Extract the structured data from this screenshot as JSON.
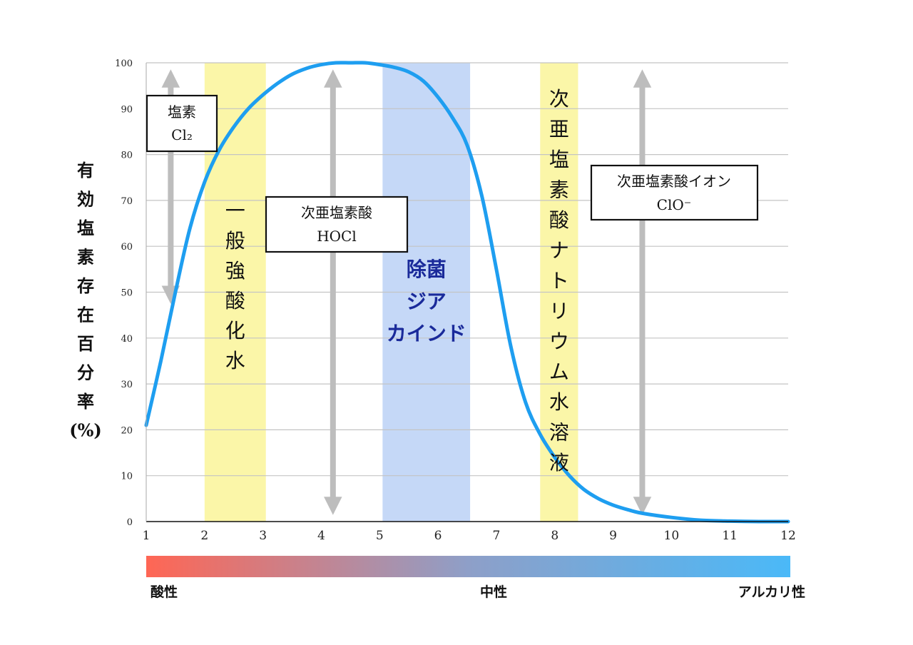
{
  "chart_data": {
    "type": "line",
    "ylabel_chars": [
      "有",
      "効",
      "塩",
      "素",
      "存",
      "在",
      "百",
      "分",
      "率",
      "(%)"
    ],
    "x_ticks": [
      "1",
      "2",
      "3",
      "4",
      "5",
      "6",
      "7",
      "8",
      "9",
      "10",
      "11",
      "12"
    ],
    "y_ticks": [
      "0",
      "10",
      "20",
      "30",
      "40",
      "50",
      "60",
      "70",
      "80",
      "90",
      "100"
    ],
    "xlim": [
      1,
      12
    ],
    "ylim": [
      0,
      100
    ],
    "grid": true,
    "series": [
      {
        "color": "#1e9ef0",
        "x": [
          1.0,
          1.25,
          1.5,
          1.75,
          2.0,
          2.25,
          2.5,
          2.75,
          3.0,
          3.25,
          3.5,
          3.75,
          4.0,
          4.25,
          4.5,
          4.75,
          5.0,
          5.25,
          5.5,
          5.75,
          6.0,
          6.25,
          6.5,
          6.75,
          7.0,
          7.25,
          7.5,
          7.75,
          8.0,
          8.25,
          8.5,
          8.75,
          9.0,
          9.25,
          9.5,
          10.0,
          10.5,
          11.0,
          11.5,
          12.0
        ],
        "y": [
          21,
          35,
          50,
          64,
          74,
          81,
          86,
          90,
          93,
          95.5,
          97.5,
          98.8,
          99.6,
          100,
          100,
          100,
          99.6,
          99,
          98,
          96,
          92.5,
          88,
          82,
          71,
          55,
          38,
          26,
          19,
          14,
          10,
          7,
          5,
          3.6,
          2.6,
          1.8,
          0.9,
          0.3,
          0.1,
          0,
          0
        ]
      }
    ],
    "bands": [
      {
        "x0": 2.0,
        "x1": 3.05,
        "color": "#fbf6a8",
        "label_vertical": [
          "一",
          "般",
          "強",
          "酸",
          "化",
          "水"
        ]
      },
      {
        "x0": 5.05,
        "x1": 6.55,
        "color": "#c5d8f7",
        "label_lines": [
          "除菌",
          "ジア",
          "カインド"
        ]
      },
      {
        "x0": 7.75,
        "x1": 8.4,
        "color": "#fbf6a8",
        "label_vertical": [
          "次",
          "亜",
          "塩",
          "素",
          "酸",
          "ナ",
          "ト",
          "リ",
          "ウ",
          "ム",
          "水",
          "溶",
          "液"
        ]
      }
    ],
    "arrows": [
      {
        "x": 1.42,
        "y_top": 100,
        "y_bottom": 46
      },
      {
        "x": 4.2,
        "y_top": 100,
        "y_bottom": 0
      },
      {
        "x": 9.5,
        "y_top": 100,
        "y_bottom": 0
      }
    ],
    "annotations": [
      {
        "lines": [
          "塩素",
          "Cl₂"
        ]
      },
      {
        "lines": [
          "次亜塩素酸",
          "HOCl"
        ]
      },
      {
        "lines": [
          "次亜塩素酸イオン",
          "ClO⁻"
        ]
      }
    ]
  },
  "scale_bar": {
    "left_color": "#ff6654",
    "mid_color": "#8e9fc8",
    "right_color": "#4ab9f8",
    "labels": [
      "酸性",
      "中性",
      "アルカリ性"
    ]
  }
}
